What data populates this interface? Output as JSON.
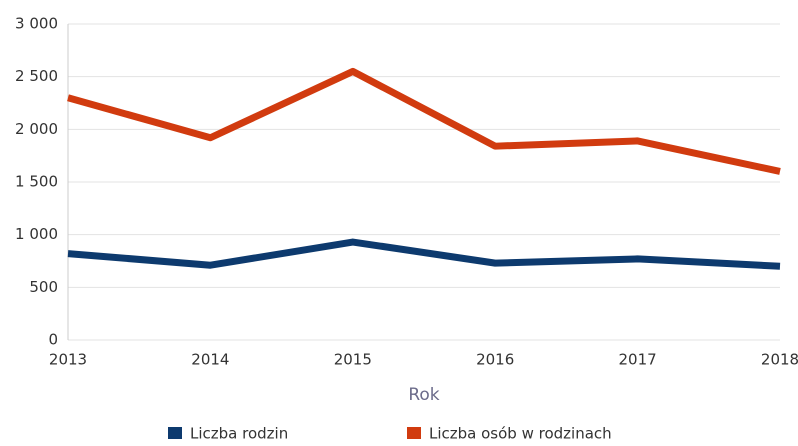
{
  "chart_data": {
    "type": "line",
    "x": [
      2013,
      2014,
      2015,
      2016,
      2017,
      2018
    ],
    "xlim": [
      2013,
      2018
    ],
    "xticks": [
      2013,
      2014,
      2015,
      2016,
      2017,
      2018
    ],
    "ylim": [
      0,
      3000
    ],
    "yticks": [
      0,
      500,
      {
        "value": 1000,
        "label": "1 000"
      },
      {
        "value": 1500,
        "label": "1 500"
      },
      {
        "value": 2000,
        "label": "2 000"
      },
      {
        "value": 2500,
        "label": "2 500"
      },
      {
        "value": 3000,
        "label": "3 000"
      }
    ],
    "x_label": "Rok",
    "grid": true,
    "legend": "bottom",
    "series": [
      {
        "name": "Liczba rodzin",
        "color": "#0d3a6e",
        "values": [
          820,
          710,
          930,
          730,
          770,
          700
        ]
      },
      {
        "name": "Liczba osób w rodzinach",
        "color": "#d13b0f",
        "values": [
          2300,
          1920,
          2550,
          1840,
          1890,
          1600
        ]
      }
    ]
  }
}
